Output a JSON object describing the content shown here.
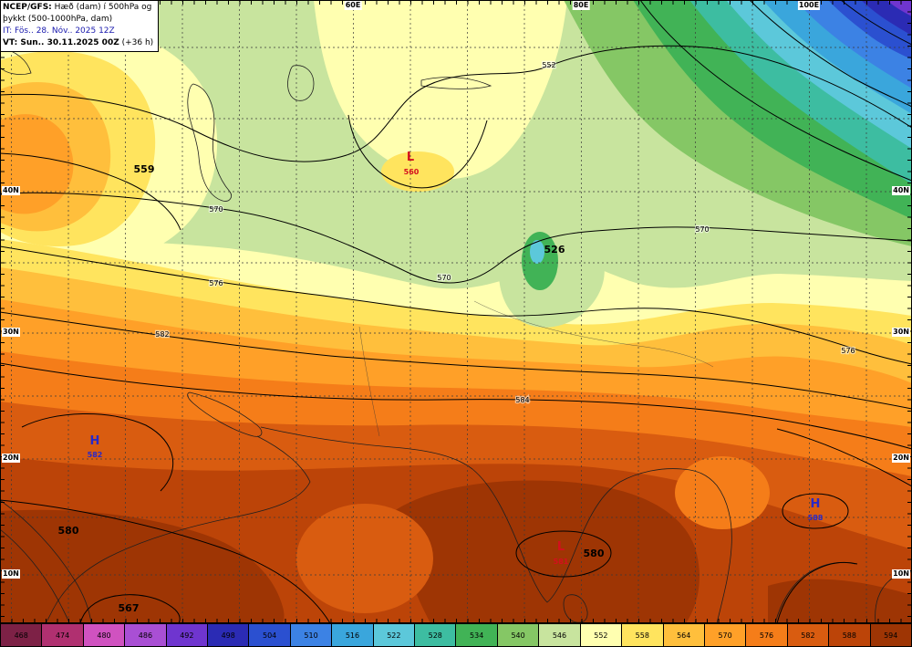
{
  "title_box": {
    "line1_bold": "NCEP/GFS:",
    "line1_rest": " Hæð (dam) í 500hPa og",
    "line2": "þykkt (500-1000hPa, dam)",
    "line3": "IT: Fös.. 28. Nóv.. 2025 12Z",
    "line4_bold": "VT: Sun.. 30.11.2025 00Z",
    "line4_rest": " (+36 h)"
  },
  "axes": {
    "lon": [
      "60E",
      "80E",
      "100E"
    ],
    "lat": [
      "40N",
      "30N",
      "20N",
      "10N"
    ]
  },
  "palette": {
    "p468": "#7d2146",
    "p474": "#b03070",
    "p480": "#d052c0",
    "p486": "#a94fd4",
    "p492": "#6f35cf",
    "p498": "#2b2bb4",
    "p504": "#2b50d0",
    "p510": "#3c82e4",
    "p516": "#3aa6dc",
    "p522": "#5cc8da",
    "p528": "#3dbda1",
    "p534": "#41b356",
    "p540": "#85c765",
    "p546": "#c8e49e",
    "p552": "#ffffb0",
    "p558": "#ffe45e",
    "p564": "#ffbf3c",
    "p570": "#ffa028",
    "p576": "#f57d19",
    "p582": "#d95c10",
    "p588": "#bc4408",
    "p594": "#9e3504",
    "marker_low": "#d40f1e",
    "marker_high": "#2929c8"
  },
  "colorbar": {
    "cells": [
      {
        "label": "468",
        "key": "p468"
      },
      {
        "label": "474",
        "key": "p474"
      },
      {
        "label": "480",
        "key": "p480"
      },
      {
        "label": "486",
        "key": "p486"
      },
      {
        "label": "492",
        "key": "p492"
      },
      {
        "label": "498",
        "key": "p498"
      },
      {
        "label": "504",
        "key": "p504"
      },
      {
        "label": "510",
        "key": "p510"
      },
      {
        "label": "516",
        "key": "p516"
      },
      {
        "label": "522",
        "key": "p522"
      },
      {
        "label": "528",
        "key": "p528"
      },
      {
        "label": "534",
        "key": "p534"
      },
      {
        "label": "540",
        "key": "p540"
      },
      {
        "label": "546",
        "key": "p546"
      },
      {
        "label": "552",
        "key": "p552"
      },
      {
        "label": "558",
        "key": "p558"
      },
      {
        "label": "564",
        "key": "p564"
      },
      {
        "label": "570",
        "key": "p570"
      },
      {
        "label": "576",
        "key": "p576"
      },
      {
        "label": "582",
        "key": "p582"
      },
      {
        "label": "588",
        "key": "p588"
      },
      {
        "label": "594",
        "key": "p594"
      }
    ]
  },
  "contour_labels": {
    "c552": "552",
    "c570": "570",
    "c576": "576",
    "c582": "582",
    "c584": "584"
  },
  "bold_labels": {
    "b559": "559",
    "b526": "526",
    "b580": "580",
    "b567": "567"
  },
  "markers": {
    "low_symbol": "L",
    "high_symbol": "H",
    "low1_value": "560",
    "low2_value": "581",
    "high1_value": "582",
    "high2_value": "588"
  },
  "chart_data": {
    "type": "heatmap",
    "title": "NCEP/GFS: Hæð (dam) í 500hPa og þykkt (500-1000hPa, dam)",
    "init_time": "IT: Fös.. 28. Nóv.. 2025 12Z",
    "valid_time": "VT: Sun.. 30.11.2025 00Z (+36 h)",
    "colorbar_values": [
      468,
      474,
      480,
      486,
      492,
      498,
      504,
      510,
      516,
      522,
      528,
      534,
      540,
      546,
      552,
      558,
      564,
      570,
      576,
      582,
      588,
      594
    ],
    "colorbar_meaning": "500-1000hPa thickness (dam), shaded",
    "height_contour_labels_dam": [
      552,
      570,
      576,
      582,
      584
    ],
    "bold_height_labels_dam": [
      559,
      526,
      580,
      580,
      567
    ],
    "pressure_centers": [
      {
        "symbol": "L",
        "value": 560
      },
      {
        "symbol": "L",
        "value": 581
      },
      {
        "symbol": "H",
        "value": 582
      },
      {
        "symbol": "H",
        "value": 588
      }
    ],
    "lon_ticks": [
      "60E",
      "80E",
      "100E"
    ],
    "lat_ticks": [
      "40N",
      "30N",
      "20N",
      "10N"
    ],
    "legend_position": "bottom",
    "grid": "dashed 5-degree graticule"
  }
}
